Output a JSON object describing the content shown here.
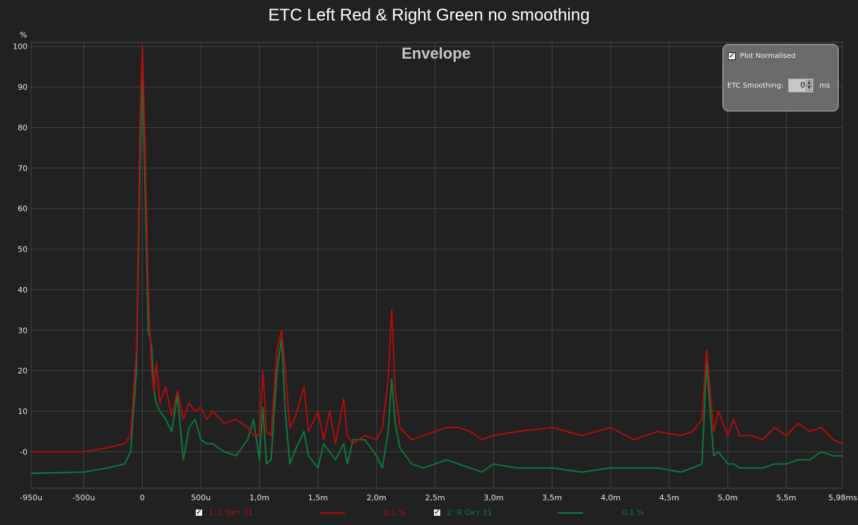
{
  "title": "ETC Left Red & Right Green no smoothing",
  "panel": {
    "plot_normalised_label": "Plot Normalised",
    "plot_normalised_checked": true,
    "smoothing_label": "ETC Smoothing:",
    "smoothing_value": "0",
    "smoothing_unit": "ms"
  },
  "legend": [
    {
      "label": "1: L Окт 31",
      "value": "0,1 %",
      "color": "#b50d0d",
      "checked": true
    },
    {
      "label": "2: R Окт 31",
      "value": "0,1 %",
      "color": "#0e7a3c",
      "checked": true
    }
  ],
  "chart_data": {
    "type": "line",
    "title": "Envelope",
    "ylabel": "%",
    "ylim": [
      -9,
      101
    ],
    "xlim": [
      -0.95,
      5.98
    ],
    "y_ticks": [
      "-0",
      "10",
      "20",
      "30",
      "40",
      "50",
      "60",
      "70",
      "80",
      "90",
      "100"
    ],
    "x_ticks": [
      {
        "v": -0.95,
        "label": "-950u"
      },
      {
        "v": -0.5,
        "label": "-500u"
      },
      {
        "v": 0,
        "label": "0"
      },
      {
        "v": 0.5,
        "label": "500u"
      },
      {
        "v": 1.0,
        "label": "1,0m"
      },
      {
        "v": 1.5,
        "label": "1,5m"
      },
      {
        "v": 2.0,
        "label": "2,0m"
      },
      {
        "v": 2.5,
        "label": "2,5m"
      },
      {
        "v": 3.0,
        "label": "3,0m"
      },
      {
        "v": 3.5,
        "label": "3,5m"
      },
      {
        "v": 4.0,
        "label": "4,0m"
      },
      {
        "v": 4.5,
        "label": "4,5m"
      },
      {
        "v": 5.0,
        "label": "5,0m"
      },
      {
        "v": 5.5,
        "label": "5,5m"
      },
      {
        "v": 5.98,
        "label": "5,98ms"
      }
    ],
    "series": [
      {
        "name": "1: L Окт 31",
        "color": "#b50d0d",
        "x": [
          -0.95,
          -0.5,
          -0.3,
          -0.15,
          -0.1,
          -0.05,
          -0.02,
          0,
          0.02,
          0.05,
          0.08,
          0.1,
          0.12,
          0.15,
          0.2,
          0.25,
          0.3,
          0.35,
          0.4,
          0.45,
          0.5,
          0.55,
          0.6,
          0.7,
          0.8,
          0.9,
          0.95,
          1.0,
          1.03,
          1.06,
          1.1,
          1.15,
          1.19,
          1.22,
          1.26,
          1.3,
          1.38,
          1.42,
          1.5,
          1.55,
          1.6,
          1.65,
          1.72,
          1.75,
          1.8,
          1.9,
          2.0,
          2.05,
          2.1,
          2.13,
          2.16,
          2.2,
          2.3,
          2.4,
          2.5,
          2.6,
          2.7,
          2.8,
          2.9,
          3.0,
          3.2,
          3.5,
          3.75,
          4.0,
          4.2,
          4.4,
          4.6,
          4.7,
          4.78,
          4.82,
          4.85,
          4.88,
          4.92,
          5.0,
          5.05,
          5.1,
          5.2,
          5.3,
          5.4,
          5.5,
          5.6,
          5.7,
          5.8,
          5.9,
          5.98
        ],
        "y": [
          0,
          0,
          1,
          2,
          4,
          25,
          80,
          100,
          80,
          40,
          20,
          15,
          22,
          12,
          16,
          9,
          15,
          8,
          12,
          10,
          11,
          8,
          10,
          7,
          8,
          6,
          4,
          4,
          20,
          5,
          4,
          25,
          30,
          20,
          6,
          8,
          16,
          5,
          10,
          3,
          10,
          2,
          13,
          4,
          2,
          4,
          3,
          6,
          18,
          35,
          15,
          6,
          3,
          4,
          5,
          6,
          6,
          5,
          3,
          4,
          5,
          6,
          4,
          6,
          3,
          5,
          4,
          5,
          8,
          25,
          15,
          5,
          10,
          4,
          8,
          4,
          4,
          3,
          6,
          4,
          7,
          5,
          6,
          3,
          2
        ]
      },
      {
        "name": "2: R Окт 31",
        "color": "#0e7a3c",
        "x": [
          -0.95,
          -0.5,
          -0.3,
          -0.15,
          -0.1,
          -0.05,
          -0.02,
          0,
          0.02,
          0.05,
          0.08,
          0.1,
          0.12,
          0.15,
          0.2,
          0.25,
          0.3,
          0.35,
          0.4,
          0.45,
          0.5,
          0.55,
          0.6,
          0.7,
          0.8,
          0.9,
          0.95,
          1.0,
          1.03,
          1.06,
          1.1,
          1.15,
          1.19,
          1.22,
          1.26,
          1.3,
          1.38,
          1.42,
          1.5,
          1.55,
          1.6,
          1.65,
          1.72,
          1.75,
          1.8,
          1.9,
          2.0,
          2.05,
          2.1,
          2.13,
          2.16,
          2.2,
          2.3,
          2.4,
          2.5,
          2.6,
          2.7,
          2.8,
          2.9,
          3.0,
          3.2,
          3.5,
          3.75,
          4.0,
          4.2,
          4.4,
          4.6,
          4.7,
          4.78,
          4.82,
          4.85,
          4.88,
          4.92,
          5.0,
          5.05,
          5.1,
          5.2,
          5.3,
          5.4,
          5.5,
          5.6,
          5.7,
          5.8,
          5.9,
          5.98
        ],
        "y": [
          -5.3,
          -5,
          -4,
          -3,
          0,
          20,
          70,
          95,
          70,
          30,
          26,
          15,
          12,
          10,
          8,
          5,
          14,
          -2,
          6,
          8,
          3,
          2,
          2,
          0,
          -1,
          3,
          8,
          -2,
          11,
          -3,
          -2,
          20,
          28,
          10,
          -3,
          0,
          5,
          -1,
          -4,
          2,
          0,
          -2,
          2,
          -3,
          3,
          3,
          -1,
          -4,
          5,
          18,
          7,
          1,
          -3,
          -4,
          -3,
          -2,
          -3,
          -4,
          -5,
          -3,
          -4,
          -4,
          -5,
          -4,
          -4,
          -4,
          -5,
          -4,
          -3,
          22,
          10,
          -1,
          0,
          -3,
          -3,
          -4,
          -4,
          -4,
          -3,
          -3,
          -2,
          -2,
          0,
          -1,
          -1
        ]
      }
    ]
  }
}
